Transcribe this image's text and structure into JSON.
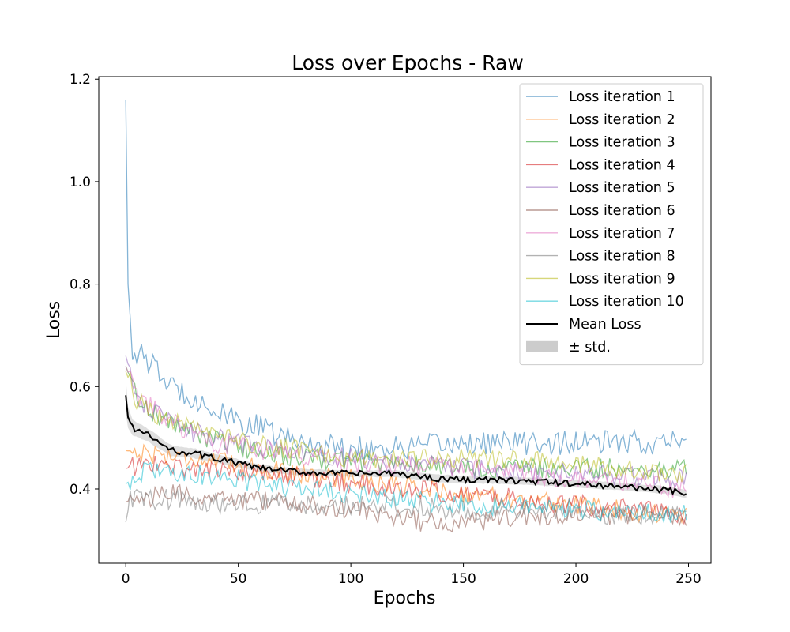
{
  "chart_data": {
    "type": "line",
    "title": "Loss over Epochs - Raw",
    "xlabel": "Epochs",
    "ylabel": "Loss",
    "xlim": [
      -12,
      260
    ],
    "ylim": [
      0.255,
      1.205
    ],
    "xticks": [
      0,
      50,
      100,
      150,
      200,
      250
    ],
    "yticks": [
      0.4,
      0.6,
      0.8,
      1.0,
      1.2
    ],
    "xtick_labels": [
      "0",
      "50",
      "100",
      "150",
      "200",
      "250"
    ],
    "ytick_labels": [
      "0.4",
      "0.6",
      "0.8",
      "1.0",
      "1.2"
    ],
    "grid": false,
    "legend_position": "top-right",
    "x_count": 250,
    "series": [
      {
        "name": "Loss iteration 1",
        "color": "#1f77b4",
        "anchors": [
          [
            0,
            1.16
          ],
          [
            1,
            0.8
          ],
          [
            3,
            0.67
          ],
          [
            10,
            0.65
          ],
          [
            20,
            0.6
          ],
          [
            30,
            0.58
          ],
          [
            40,
            0.55
          ],
          [
            50,
            0.53
          ],
          [
            60,
            0.52
          ],
          [
            70,
            0.5
          ],
          [
            80,
            0.49
          ],
          [
            100,
            0.48
          ],
          [
            125,
            0.48
          ],
          [
            150,
            0.49
          ],
          [
            175,
            0.49
          ],
          [
            200,
            0.49
          ],
          [
            225,
            0.49
          ],
          [
            249,
            0.49
          ]
        ]
      },
      {
        "name": "Loss iteration 2",
        "color": "#ff7f0e",
        "anchors": [
          [
            0,
            0.475
          ],
          [
            10,
            0.47
          ],
          [
            30,
            0.46
          ],
          [
            60,
            0.44
          ],
          [
            100,
            0.42
          ],
          [
            150,
            0.39
          ],
          [
            200,
            0.37
          ],
          [
            249,
            0.345
          ]
        ]
      },
      {
        "name": "Loss iteration 3",
        "color": "#2ca02c",
        "anchors": [
          [
            0,
            0.64
          ],
          [
            5,
            0.58
          ],
          [
            15,
            0.54
          ],
          [
            30,
            0.51
          ],
          [
            50,
            0.48
          ],
          [
            80,
            0.46
          ],
          [
            120,
            0.45
          ],
          [
            160,
            0.44
          ],
          [
            200,
            0.44
          ],
          [
            249,
            0.44
          ]
        ]
      },
      {
        "name": "Loss iteration 4",
        "color": "#d62728",
        "anchors": [
          [
            0,
            0.44
          ],
          [
            10,
            0.45
          ],
          [
            30,
            0.44
          ],
          [
            60,
            0.43
          ],
          [
            100,
            0.41
          ],
          [
            150,
            0.39
          ],
          [
            200,
            0.37
          ],
          [
            249,
            0.35
          ]
        ]
      },
      {
        "name": "Loss iteration 5",
        "color": "#9467bd",
        "anchors": [
          [
            0,
            0.66
          ],
          [
            5,
            0.58
          ],
          [
            15,
            0.54
          ],
          [
            30,
            0.51
          ],
          [
            60,
            0.48
          ],
          [
            100,
            0.46
          ],
          [
            150,
            0.44
          ],
          [
            200,
            0.43
          ],
          [
            249,
            0.42
          ]
        ]
      },
      {
        "name": "Loss iteration 6",
        "color": "#8c564b",
        "anchors": [
          [
            0,
            0.375
          ],
          [
            20,
            0.39
          ],
          [
            50,
            0.38
          ],
          [
            100,
            0.36
          ],
          [
            140,
            0.33
          ],
          [
            180,
            0.345
          ],
          [
            220,
            0.35
          ],
          [
            249,
            0.345
          ]
        ]
      },
      {
        "name": "Loss iteration 7",
        "color": "#e377c2",
        "anchors": [
          [
            0,
            0.64
          ],
          [
            5,
            0.58
          ],
          [
            20,
            0.53
          ],
          [
            40,
            0.49
          ],
          [
            70,
            0.47
          ],
          [
            100,
            0.45
          ],
          [
            150,
            0.44
          ],
          [
            200,
            0.42
          ],
          [
            249,
            0.4
          ]
        ]
      },
      {
        "name": "Loss iteration 8",
        "color": "#7f7f7f",
        "anchors": [
          [
            0,
            0.335
          ],
          [
            2,
            0.38
          ],
          [
            20,
            0.38
          ],
          [
            50,
            0.37
          ],
          [
            100,
            0.37
          ],
          [
            150,
            0.36
          ],
          [
            200,
            0.35
          ],
          [
            249,
            0.35
          ]
        ]
      },
      {
        "name": "Loss iteration 9",
        "color": "#bcbd22",
        "anchors": [
          [
            0,
            0.63
          ],
          [
            5,
            0.57
          ],
          [
            20,
            0.53
          ],
          [
            40,
            0.5
          ],
          [
            70,
            0.48
          ],
          [
            100,
            0.46
          ],
          [
            150,
            0.46
          ],
          [
            200,
            0.45
          ],
          [
            249,
            0.43
          ]
        ]
      },
      {
        "name": "Loss iteration 10",
        "color": "#17becf",
        "anchors": [
          [
            0,
            0.41
          ],
          [
            10,
            0.44
          ],
          [
            30,
            0.43
          ],
          [
            60,
            0.41
          ],
          [
            100,
            0.39
          ],
          [
            150,
            0.37
          ],
          [
            200,
            0.36
          ],
          [
            249,
            0.35
          ]
        ]
      }
    ],
    "mean": {
      "name": "Mean Loss",
      "color": "#000000",
      "anchors": [
        [
          0,
          0.583
        ],
        [
          1,
          0.54
        ],
        [
          3,
          0.52
        ],
        [
          10,
          0.505
        ],
        [
          15,
          0.49
        ],
        [
          20,
          0.475
        ],
        [
          30,
          0.47
        ],
        [
          40,
          0.46
        ],
        [
          50,
          0.45
        ],
        [
          60,
          0.44
        ],
        [
          80,
          0.432
        ],
        [
          100,
          0.43
        ],
        [
          120,
          0.43
        ],
        [
          140,
          0.42
        ],
        [
          160,
          0.418
        ],
        [
          180,
          0.415
        ],
        [
          200,
          0.41
        ],
        [
          220,
          0.405
        ],
        [
          240,
          0.398
        ],
        [
          249,
          0.39
        ]
      ]
    },
    "std_label": "± std.",
    "std_color": "#bfbfbf"
  }
}
